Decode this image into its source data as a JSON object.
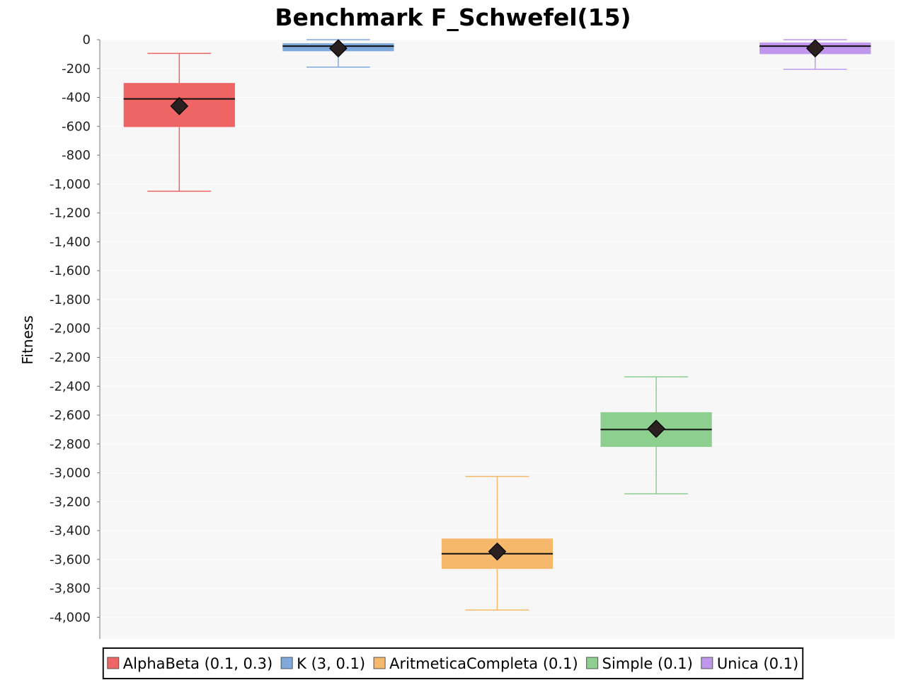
{
  "chart_data": {
    "type": "box",
    "title": "Benchmark F_Schwefel(15)",
    "xlabel": "",
    "ylabel": "Fitness",
    "ylim": [
      -4150,
      0
    ],
    "yticks": [
      0,
      -200,
      -400,
      -600,
      -800,
      -1000,
      -1200,
      -1400,
      -1600,
      -1800,
      -2000,
      -2200,
      -2400,
      -2600,
      -2800,
      -3000,
      -3200,
      -3400,
      -3600,
      -3800,
      -4000
    ],
    "ytick_labels": [
      "0",
      "-200",
      "-400",
      "-600",
      "-800",
      "-1,000",
      "-1,200",
      "-1,400",
      "-1,600",
      "-1,800",
      "-2,000",
      "-2,200",
      "-2,400",
      "-2,600",
      "-2,800",
      "-3,000",
      "-3,200",
      "-3,400",
      "-3,600",
      "-3,800",
      "-4,000"
    ],
    "grid": true,
    "legend_position": "bottom",
    "series": [
      {
        "name": "AlphaBeta (0.1, 0.3)",
        "color": "#ef6464",
        "whisker_low": -1050,
        "q1": -605,
        "median": -410,
        "q3": -300,
        "whisker_high": -95,
        "mean": -460
      },
      {
        "name": "K (3, 0.1)",
        "color": "#7fa8dd",
        "whisker_low": -190,
        "q1": -80,
        "median": -45,
        "q3": -25,
        "whisker_high": 0,
        "mean": -60
      },
      {
        "name": "AritmeticaCompleta (0.1)",
        "color": "#f6b86a",
        "whisker_low": -3950,
        "q1": -3665,
        "median": -3560,
        "q3": -3455,
        "whisker_high": -3025,
        "mean": -3545
      },
      {
        "name": "Simple (0.1)",
        "color": "#8ccf8f",
        "whisker_low": -3145,
        "q1": -2820,
        "median": -2700,
        "q3": -2580,
        "whisker_high": -2335,
        "mean": -2695
      },
      {
        "name": "Unica (0.1)",
        "color": "#c197ee",
        "whisker_low": -205,
        "q1": -100,
        "median": -45,
        "q3": -20,
        "whisker_high": 0,
        "mean": -60
      }
    ]
  }
}
